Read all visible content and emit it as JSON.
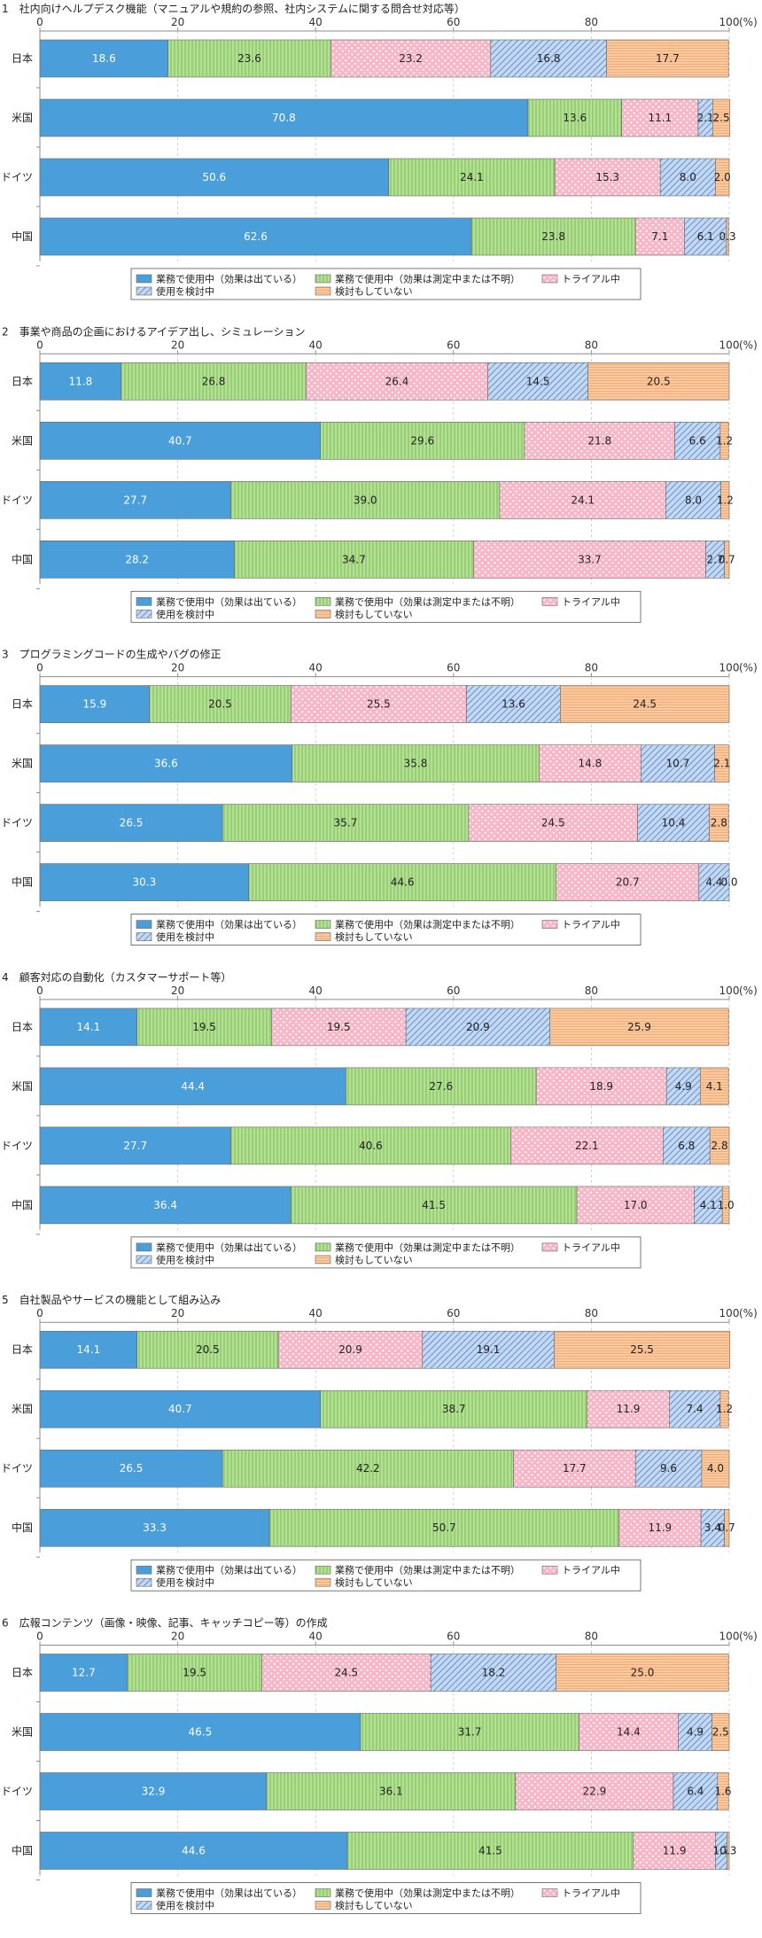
{
  "colors": {
    "seg1": "#4a9fda",
    "seg2": "#b4e091",
    "seg3": "#f7b7c8",
    "seg4": "#a9c4ea",
    "seg5": "#fbc9a0",
    "grid": "#bdbdbd",
    "axis": "#8c8c8c"
  },
  "chart_data": [
    {
      "type": "bar",
      "orientation": "horizontal",
      "stacked": true,
      "title": "1　社内向けヘルプデスク機能（マニュアルや規約の参照、社内システムに関する問合せ対応等）",
      "categories": [
        "日本",
        "米国",
        "ドイツ",
        "中国"
      ],
      "series": [
        {
          "name": "業務で使用中（効果は出ている）",
          "values": [
            18.6,
            70.8,
            50.6,
            62.6
          ]
        },
        {
          "name": "業務で使用中（効果は測定中または不明）",
          "values": [
            23.6,
            13.6,
            24.1,
            23.8
          ]
        },
        {
          "name": "トライアル中",
          "values": [
            23.2,
            11.1,
            15.3,
            7.1
          ]
        },
        {
          "name": "使用を検討中",
          "values": [
            16.8,
            2.1,
            8.0,
            6.1
          ]
        },
        {
          "name": "検討もしていない",
          "values": [
            17.7,
            2.5,
            2.0,
            0.3
          ]
        }
      ],
      "xlim": [
        0,
        100
      ],
      "xticks": [
        "0",
        "20",
        "40",
        "60",
        "80",
        "100"
      ],
      "unit": "(%)",
      "grid": true,
      "legend": "bottom"
    },
    {
      "type": "bar",
      "orientation": "horizontal",
      "stacked": true,
      "title": "2　事業や商品の企画におけるアイデア出し、シミュレーション",
      "categories": [
        "日本",
        "米国",
        "ドイツ",
        "中国"
      ],
      "series": [
        {
          "name": "業務で使用中（効果は出ている）",
          "values": [
            11.8,
            40.7,
            27.7,
            28.2
          ]
        },
        {
          "name": "業務で使用中（効果は測定中または不明）",
          "values": [
            26.8,
            29.6,
            39.0,
            34.7
          ]
        },
        {
          "name": "トライアル中",
          "values": [
            26.4,
            21.8,
            24.1,
            33.7
          ]
        },
        {
          "name": "使用を検討中",
          "values": [
            14.5,
            6.6,
            8.0,
            2.7
          ]
        },
        {
          "name": "検討もしていない",
          "values": [
            20.5,
            1.2,
            1.2,
            0.7
          ]
        }
      ],
      "xlim": [
        0,
        100
      ],
      "xticks": [
        "0",
        "20",
        "40",
        "60",
        "80",
        "100"
      ],
      "unit": "(%)",
      "grid": true,
      "legend": "bottom"
    },
    {
      "type": "bar",
      "orientation": "horizontal",
      "stacked": true,
      "title": "3　プログラミングコードの生成やバグの修正",
      "categories": [
        "日本",
        "米国",
        "ドイツ",
        "中国"
      ],
      "series": [
        {
          "name": "業務で使用中（効果は出ている）",
          "values": [
            15.9,
            36.6,
            26.5,
            30.3
          ]
        },
        {
          "name": "業務で使用中（効果は測定中または不明）",
          "values": [
            20.5,
            35.8,
            35.7,
            44.6
          ]
        },
        {
          "name": "トライアル中",
          "values": [
            25.5,
            14.8,
            24.5,
            20.7
          ]
        },
        {
          "name": "使用を検討中",
          "values": [
            13.6,
            10.7,
            10.4,
            4.4
          ]
        },
        {
          "name": "検討もしていない",
          "values": [
            24.5,
            2.1,
            2.8,
            0.0
          ]
        }
      ],
      "xlim": [
        0,
        100
      ],
      "xticks": [
        "0",
        "20",
        "40",
        "60",
        "80",
        "100"
      ],
      "unit": "(%)",
      "grid": true,
      "legend": "bottom"
    },
    {
      "type": "bar",
      "orientation": "horizontal",
      "stacked": true,
      "title": "4　顧客対応の自動化（カスタマーサポート等）",
      "categories": [
        "日本",
        "米国",
        "ドイツ",
        "中国"
      ],
      "series": [
        {
          "name": "業務で使用中（効果は出ている）",
          "values": [
            14.1,
            44.4,
            27.7,
            36.4
          ]
        },
        {
          "name": "業務で使用中（効果は測定中または不明）",
          "values": [
            19.5,
            27.6,
            40.6,
            41.5
          ]
        },
        {
          "name": "トライアル中",
          "values": [
            19.5,
            18.9,
            22.1,
            17.0
          ]
        },
        {
          "name": "使用を検討中",
          "values": [
            20.9,
            4.9,
            6.8,
            4.1
          ]
        },
        {
          "name": "検討もしていない",
          "values": [
            25.9,
            4.1,
            2.8,
            1.0
          ]
        }
      ],
      "xlim": [
        0,
        100
      ],
      "xticks": [
        "0",
        "20",
        "40",
        "60",
        "80",
        "100"
      ],
      "unit": "(%)",
      "grid": true,
      "legend": "bottom"
    },
    {
      "type": "bar",
      "orientation": "horizontal",
      "stacked": true,
      "title": "5　自社製品やサービスの機能として組み込み",
      "categories": [
        "日本",
        "米国",
        "ドイツ",
        "中国"
      ],
      "series": [
        {
          "name": "業務で使用中（効果は出ている）",
          "values": [
            14.1,
            40.7,
            26.5,
            33.3
          ]
        },
        {
          "name": "業務で使用中（効果は測定中または不明）",
          "values": [
            20.5,
            38.7,
            42.2,
            50.7
          ]
        },
        {
          "name": "トライアル中",
          "values": [
            20.9,
            11.9,
            17.7,
            11.9
          ]
        },
        {
          "name": "使用を検討中",
          "values": [
            19.1,
            7.4,
            9.6,
            3.4
          ]
        },
        {
          "name": "検討もしていない",
          "values": [
            25.5,
            1.2,
            4.0,
            0.7
          ]
        }
      ],
      "xlim": [
        0,
        100
      ],
      "xticks": [
        "0",
        "20",
        "40",
        "60",
        "80",
        "100"
      ],
      "unit": "(%)",
      "grid": true,
      "legend": "bottom"
    },
    {
      "type": "bar",
      "orientation": "horizontal",
      "stacked": true,
      "title": "6　広報コンテンツ（画像・映像、記事、キャッチコピー等）の作成",
      "categories": [
        "日本",
        "米国",
        "ドイツ",
        "中国"
      ],
      "series": [
        {
          "name": "業務で使用中（効果は出ている）",
          "values": [
            12.7,
            46.5,
            32.9,
            44.6
          ]
        },
        {
          "name": "業務で使用中（効果は測定中または不明）",
          "values": [
            19.5,
            31.7,
            36.1,
            41.5
          ]
        },
        {
          "name": "トライアル中",
          "values": [
            24.5,
            14.4,
            22.9,
            11.9
          ]
        },
        {
          "name": "使用を検討中",
          "values": [
            18.2,
            4.9,
            6.4,
            1.7
          ]
        },
        {
          "name": "検討もしていない",
          "values": [
            25.0,
            2.5,
            1.6,
            0.3
          ]
        }
      ],
      "xlim": [
        0,
        100
      ],
      "xticks": [
        "0",
        "20",
        "40",
        "60",
        "80",
        "100"
      ],
      "unit": "(%)",
      "grid": true,
      "legend": "bottom"
    }
  ]
}
